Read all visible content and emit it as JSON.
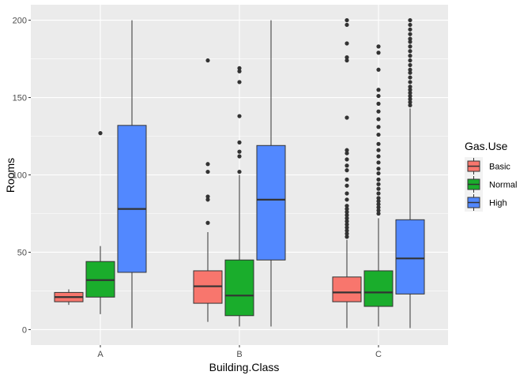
{
  "chart_data": {
    "type": "box",
    "xlabel": "Building.Class",
    "ylabel": "Rooms",
    "ylim": [
      -10,
      210
    ],
    "y_ticks": [
      0,
      50,
      100,
      150,
      200
    ],
    "categories": [
      "A",
      "B",
      "C"
    ],
    "legend": {
      "title": "Gas.Use",
      "position": "right"
    },
    "colors": {
      "panel": "#EBEBEB",
      "grid": "#FFFFFF",
      "Basic": "#F8766D",
      "Normal": "#1AAD2C",
      "High": "#5288FF"
    },
    "series": [
      {
        "name": "Basic",
        "boxes": [
          {
            "category": "A",
            "whisker_low": 16,
            "q1": 18,
            "median": 21,
            "q3": 24,
            "whisker_high": 26,
            "outliers": []
          },
          {
            "category": "B",
            "whisker_low": 5,
            "q1": 17,
            "median": 28,
            "q3": 38,
            "whisker_high": 63,
            "outliers": [
              69,
              84,
              86,
              102,
              107,
              174
            ]
          },
          {
            "category": "C",
            "whisker_low": 1,
            "q1": 18,
            "median": 24,
            "q3": 34,
            "whisker_high": 58,
            "outliers": [
              60,
              62,
              64,
              66,
              68,
              70,
              72,
              74,
              76,
              78,
              80,
              84,
              88,
              93,
              97,
              103,
              106,
              110,
              114,
              116,
              137,
              174,
              176,
              185,
              197,
              200
            ]
          }
        ]
      },
      {
        "name": "Normal",
        "boxes": [
          {
            "category": "A",
            "whisker_low": 10,
            "q1": 21,
            "median": 32,
            "q3": 44,
            "whisker_high": 54,
            "outliers": [
              127
            ]
          },
          {
            "category": "B",
            "whisker_low": 2,
            "q1": 9,
            "median": 22,
            "q3": 45,
            "whisker_high": 100,
            "outliers": [
              102,
              112,
              115,
              121,
              138,
              160,
              167,
              169
            ]
          },
          {
            "category": "C",
            "whisker_low": 2,
            "q1": 15,
            "median": 24,
            "q3": 38,
            "whisker_high": 72,
            "outliers": [
              75,
              77,
              79,
              81,
              83,
              85,
              88,
              91,
              94,
              97,
              101,
              104,
              108,
              112,
              116,
              120,
              126,
              131,
              136,
              141,
              146,
              151,
              155,
              168,
              179,
              183
            ]
          }
        ]
      },
      {
        "name": "High",
        "boxes": [
          {
            "category": "A",
            "whisker_low": 1,
            "q1": 37,
            "median": 78,
            "q3": 132,
            "whisker_high": 200,
            "outliers": []
          },
          {
            "category": "B",
            "whisker_low": 2,
            "q1": 45,
            "median": 84,
            "q3": 119,
            "whisker_high": 200,
            "outliers": []
          },
          {
            "category": "C",
            "whisker_low": 1,
            "q1": 23,
            "median": 46,
            "q3": 71,
            "whisker_high": 143,
            "outliers": [
              145,
              147,
              149,
              151,
              153,
              155,
              157,
              160,
              163,
              166,
              168,
              171,
              174,
              177,
              180,
              183,
              186,
              188,
              191,
              194,
              197,
              200
            ]
          }
        ]
      }
    ]
  }
}
